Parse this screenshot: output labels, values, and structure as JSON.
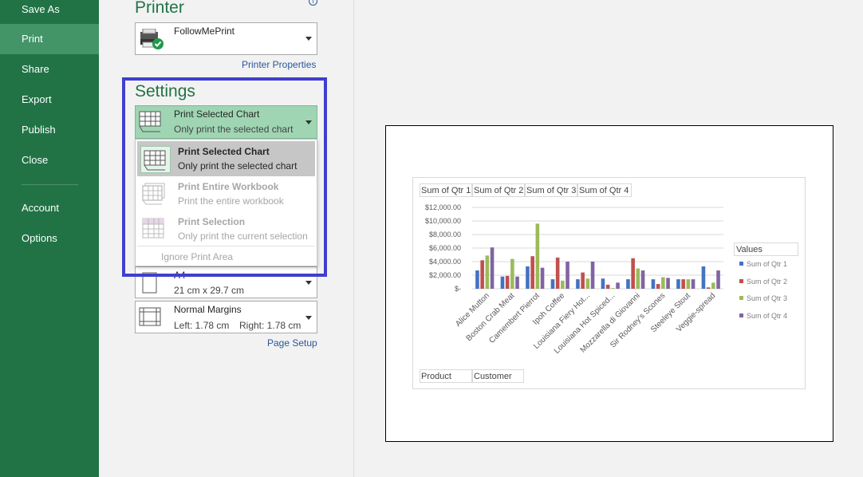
{
  "nav": {
    "items": [
      {
        "label": "Save As",
        "active": false
      },
      {
        "label": "Print",
        "active": true
      },
      {
        "label": "Share",
        "active": false
      },
      {
        "label": "Export",
        "active": false
      },
      {
        "label": "Publish",
        "active": false
      },
      {
        "label": "Close",
        "active": false
      },
      {
        "label": "Account",
        "active": false
      },
      {
        "label": "Options",
        "active": false
      }
    ]
  },
  "printer": {
    "section_title": "Printer",
    "name": "FollowMePrint",
    "properties_link": "Printer Properties"
  },
  "settings": {
    "section_title": "Settings",
    "selected": {
      "title": "Print Selected Chart",
      "subtitle": "Only print the selected chart"
    },
    "menu": [
      {
        "title": "Print Selected Chart",
        "subtitle": "Only print the selected chart",
        "enabled": true,
        "highlighted": true
      },
      {
        "title": "Print Entire Workbook",
        "subtitle": "Print the entire workbook",
        "enabled": false,
        "highlighted": false
      },
      {
        "title": "Print Selection",
        "subtitle": "Only print the current selection",
        "enabled": false,
        "highlighted": false
      }
    ],
    "ignore_print_area": "Ignore Print Area",
    "paper": {
      "title": "A4",
      "size": "21 cm x 29.7 cm"
    },
    "margins": {
      "title": "Normal Margins",
      "left": "Left:  1.78 cm",
      "right": "Right:  1.78 cm"
    },
    "page_setup_link": "Page Setup"
  },
  "colors": {
    "nav_bg": "#217346",
    "nav_active": "#439467",
    "accent": "#217346",
    "selection_box": "#3f3fcf",
    "series": [
      "#4472c4",
      "#c0504d",
      "#9bbb59",
      "#8064a2"
    ]
  },
  "chart_data": {
    "type": "bar",
    "value_field_buttons": [
      "Sum of Qtr 1",
      "Sum of Qtr 2",
      "Sum of Qtr 3",
      "Sum of Qtr 4"
    ],
    "axis_field_buttons": [
      "Product",
      "Customer"
    ],
    "legend_title": "Values",
    "legend_placement": "right",
    "categories": [
      "Alice Mutton",
      "Boston Crab Meat",
      "Camembert Pierrot",
      "Ipoh Coffee",
      "Louisiana Fiery Hot...",
      "Louisiana Hot Spiced...",
      "Mozzarella di Giovanni",
      "Sir Rodney's Scones",
      "Steeleye Stout",
      "Veggie-spread"
    ],
    "yticks": [
      "$-",
      "$2,000.00",
      "$4,000.00",
      "$6,000.00",
      "$8,000.00",
      "$10,000.00",
      "$12,000.00"
    ],
    "ylim": [
      0,
      12000
    ],
    "grid": true,
    "series": [
      {
        "name": "Sum of Qtr 1",
        "values": [
          2700,
          1800,
          3300,
          1400,
          1400,
          1500,
          1400,
          1400,
          1400,
          3300
        ]
      },
      {
        "name": "Sum of Qtr 2",
        "values": [
          4200,
          1900,
          4800,
          4600,
          2400,
          600,
          4500,
          700,
          1400,
          200
        ]
      },
      {
        "name": "Sum of Qtr 3",
        "values": [
          4900,
          4400,
          9600,
          1200,
          1500,
          100,
          3000,
          1700,
          1400,
          900
        ]
      },
      {
        "name": "Sum of Qtr 4",
        "values": [
          6100,
          1800,
          3100,
          4000,
          4000,
          900,
          2700,
          1600,
          1400,
          2700
        ]
      }
    ]
  }
}
